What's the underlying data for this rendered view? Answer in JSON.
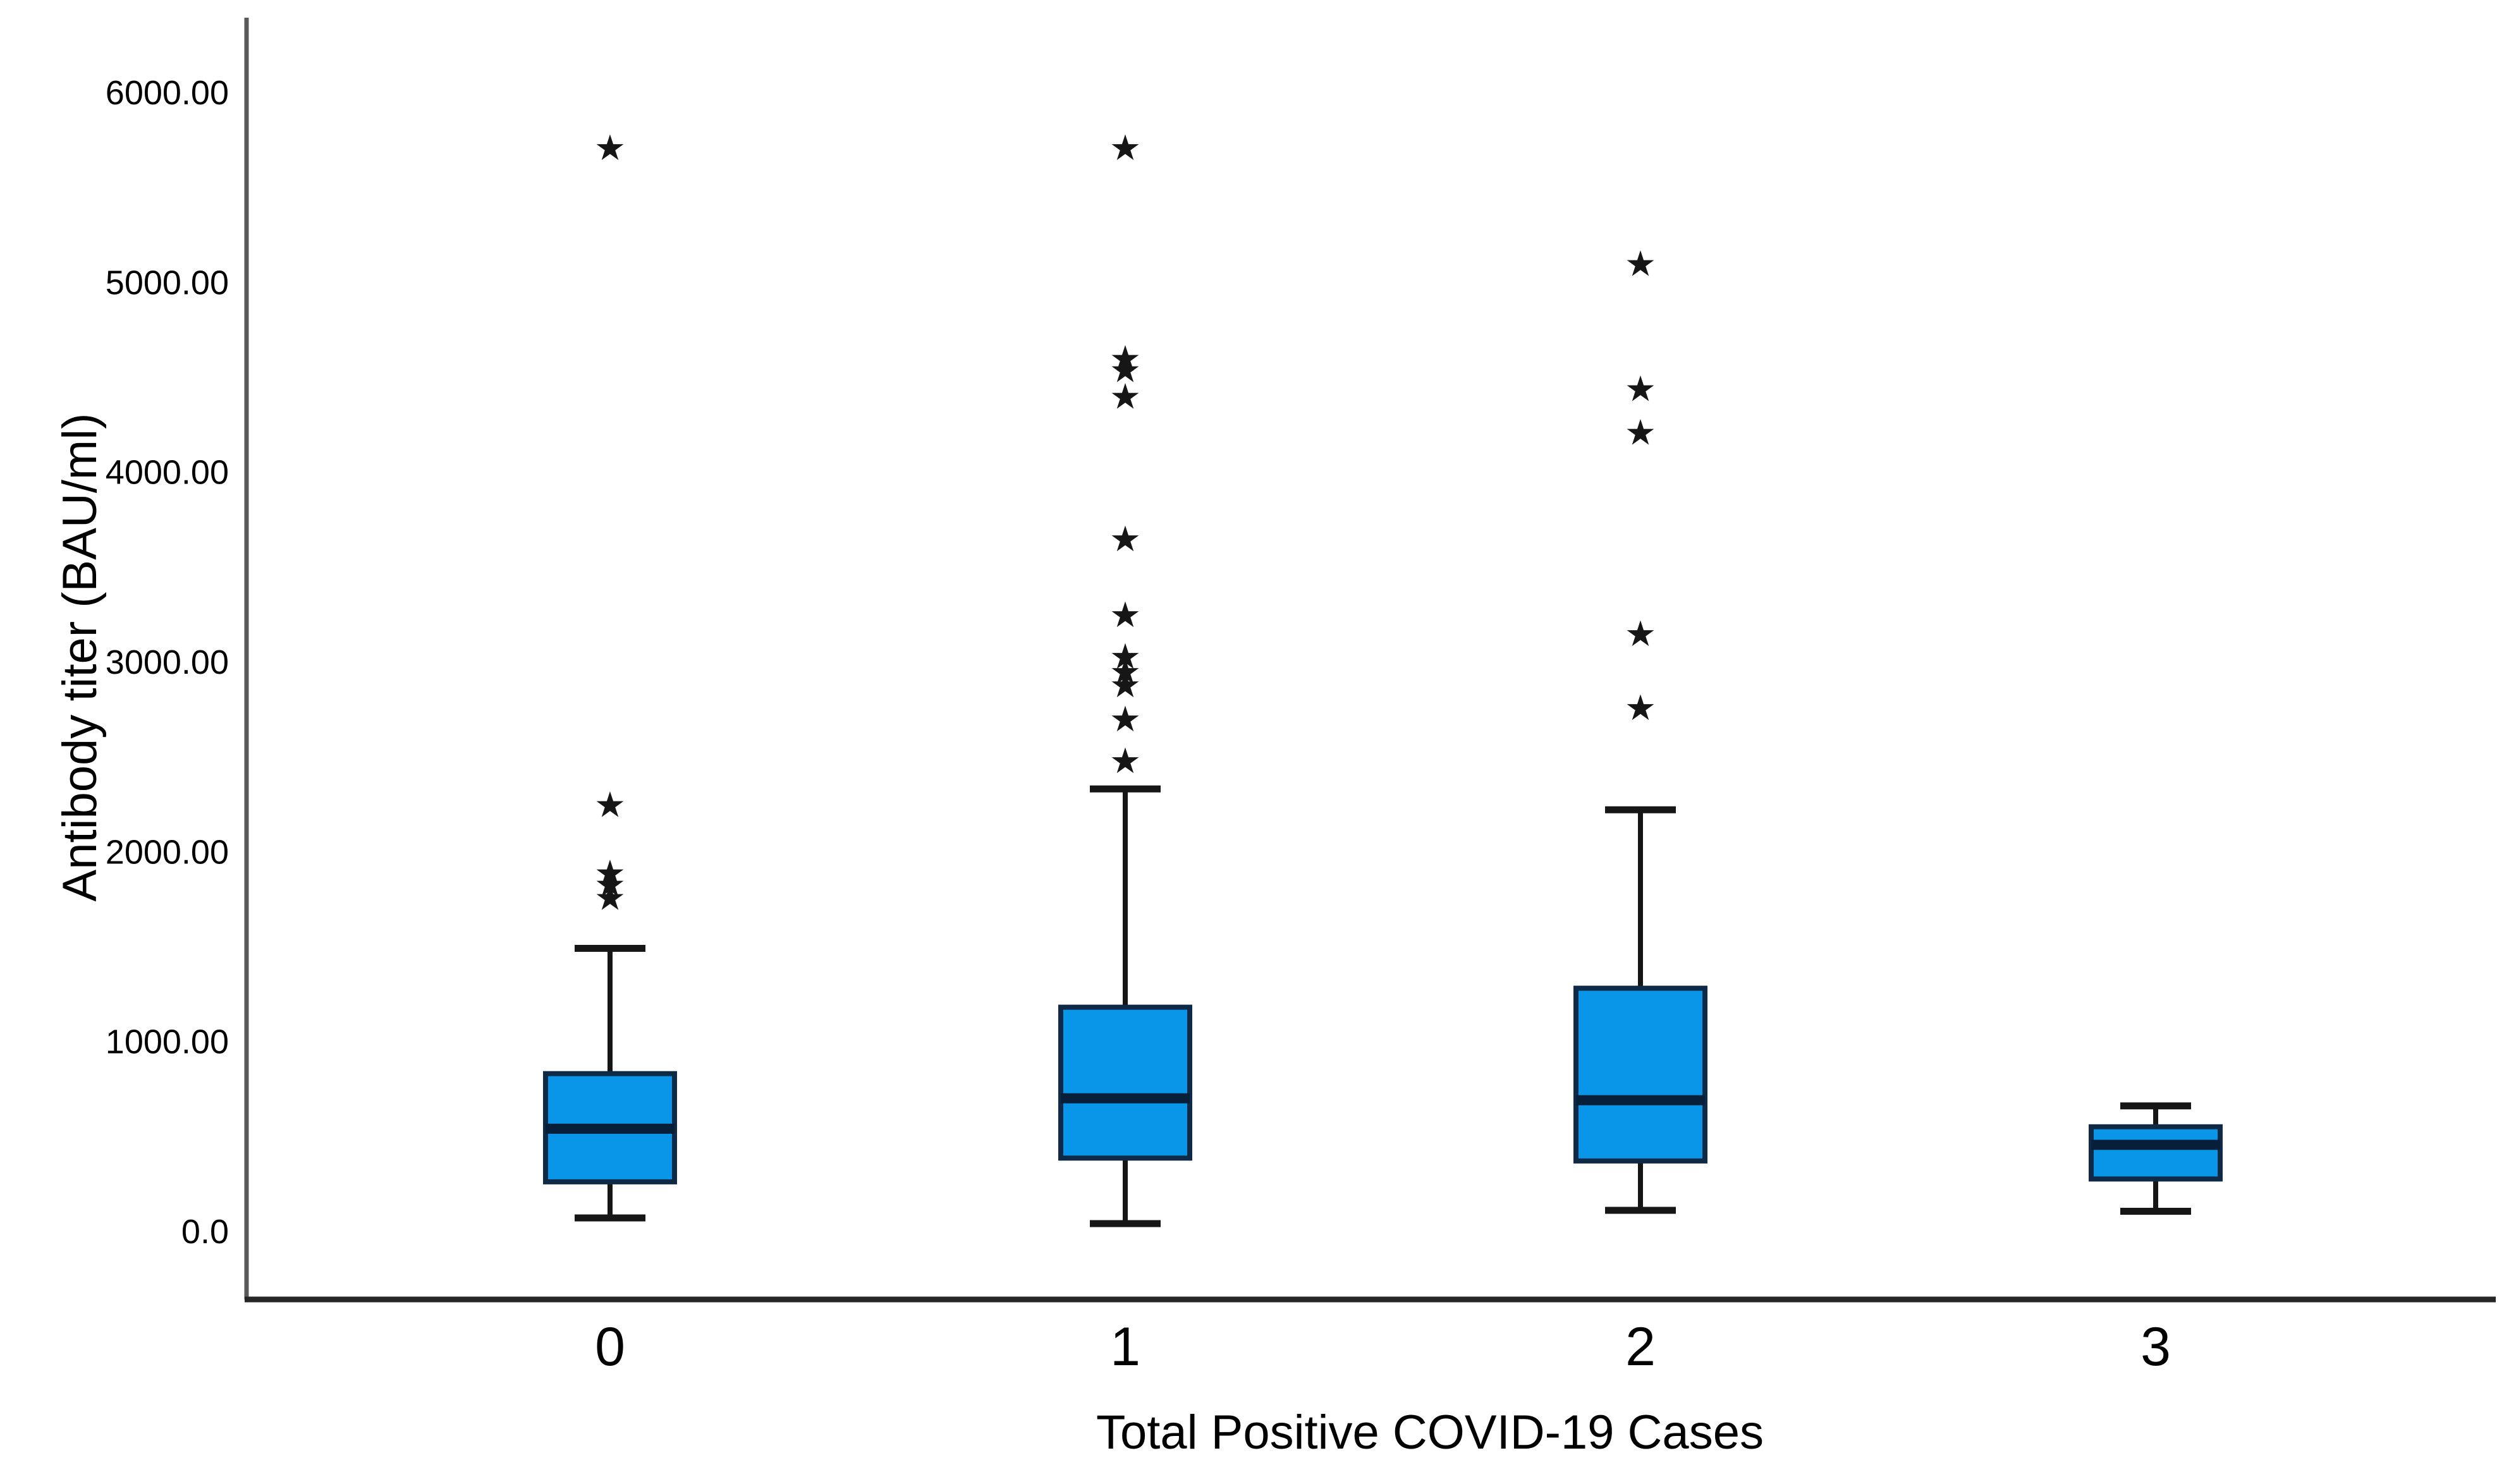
{
  "chart_data": {
    "type": "box",
    "title": "",
    "xlabel": "Total Positive COVID-19 Cases",
    "ylabel": "Antibody titer (BAU/ml)",
    "categories": [
      "0",
      "1",
      "2",
      "3"
    ],
    "y_tick_labels": [
      "6000.00",
      "5000.00",
      "4000.00",
      "3000.00",
      "2000.00",
      "1000.00",
      "0.0"
    ],
    "y_tick_values": [
      6000,
      5000,
      4000,
      3000,
      2000,
      1000,
      0
    ],
    "ylim": [
      -360,
      6500
    ],
    "grid": false,
    "legend": "none",
    "outlier_marker": "star",
    "series": [
      {
        "category": "0",
        "whisker_low": 70,
        "q1": 260,
        "median": 540,
        "q3": 830,
        "whisker_high": 1490,
        "outliers": [
          1760,
          1830,
          1890,
          2250,
          5710
        ]
      },
      {
        "category": "1",
        "whisker_low": 40,
        "q1": 385,
        "median": 700,
        "q3": 1180,
        "whisker_high": 2330,
        "outliers": [
          2480,
          2700,
          2880,
          2950,
          3030,
          3250,
          3650,
          4400,
          4540,
          4600,
          5710
        ]
      },
      {
        "category": "2",
        "whisker_low": 110,
        "q1": 370,
        "median": 690,
        "q3": 1280,
        "whisker_high": 2220,
        "outliers": [
          2760,
          3150,
          4210,
          4440,
          5100
        ]
      },
      {
        "category": "3",
        "whisker_low": 105,
        "q1": 275,
        "median": 455,
        "q3": 550,
        "whisker_high": 660,
        "outliers": []
      }
    ],
    "colors": {
      "box_fill": "#0996e9",
      "box_border": "#0e2a47",
      "median_line": "#071f39",
      "whisker": "#161616",
      "outlier": "#161616",
      "y_axis_line": "#595959",
      "x_axis_line": "#262626",
      "text": "#000000",
      "background": "#ffffff"
    }
  }
}
